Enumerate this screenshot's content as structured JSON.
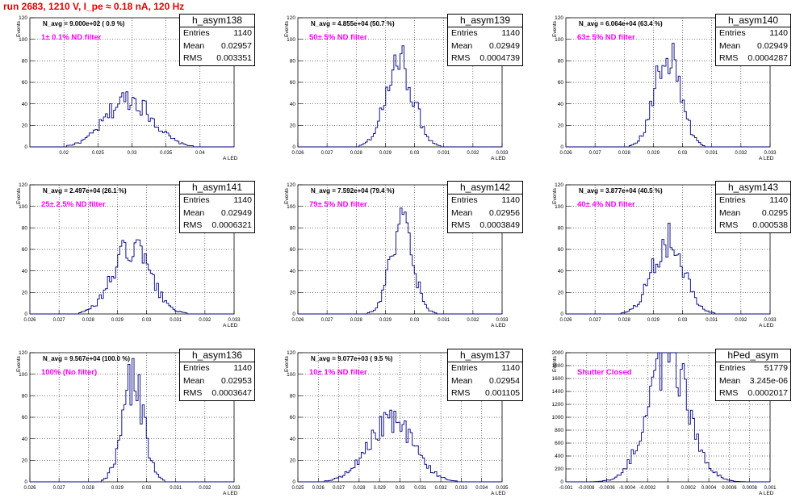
{
  "title": "run 2683,  1210 V, I_pe ≈ 0.18 nA, 120 Hz",
  "chart_data": [
    {
      "type": "histogram",
      "histname": "h_asym138",
      "stats": {
        "Entries": "1140",
        "Mean": "0.02957",
        "RMS": "0.003351"
      },
      "n_avg": "N_avg = 9.000e+02 ( 0.9 %)",
      "filter": "1± 0.1% ND filter",
      "xlim": [
        0.015,
        0.045
      ],
      "ylim": [
        0,
        120
      ],
      "xticks": [
        "0.02",
        "0.025",
        "0.03",
        "0.035",
        "0.04"
      ],
      "yticks": [
        "0",
        "20",
        "40",
        "60",
        "80",
        "100",
        "120"
      ],
      "ylabel": "Events",
      "xlabel": "A_LED",
      "mean": 0.02957,
      "rms": 0.003351,
      "peak": 45,
      "color": "#000080"
    },
    {
      "type": "histogram",
      "histname": "h_asym139",
      "stats": {
        "Entries": "1140",
        "Mean": "0.02949",
        "RMS": "0.0004739"
      },
      "n_avg": "N_avg = 4.855e+04 (50.7 %)",
      "filter": "50± 5% ND filter",
      "xlim": [
        0.026,
        0.033
      ],
      "ylim": [
        0,
        120
      ],
      "xticks": [
        "0.026",
        "0.027",
        "0.028",
        "0.029",
        "0.03",
        "0.031",
        "0.032",
        "0.033"
      ],
      "yticks": [
        "0",
        "20",
        "40",
        "60",
        "80",
        "100",
        "120"
      ],
      "ylabel": "Events",
      "xlabel": "A_LED",
      "mean": 0.02949,
      "rms": 0.0004739,
      "peak": 78,
      "color": "#000080"
    },
    {
      "type": "histogram",
      "histname": "h_asym140",
      "stats": {
        "Entries": "1140",
        "Mean": "0.02949",
        "RMS": "0.0004287"
      },
      "n_avg": "N_avg = 6.064e+04 (63.4 %)",
      "filter": "63± 5% ND filter",
      "xlim": [
        0.026,
        0.033
      ],
      "ylim": [
        0,
        120
      ],
      "xticks": [
        "0.026",
        "0.027",
        "0.028",
        "0.029",
        "0.03",
        "0.031",
        "0.032",
        "0.033"
      ],
      "yticks": [
        "0",
        "20",
        "40",
        "60",
        "80",
        "100",
        "120"
      ],
      "ylabel": "Events",
      "xlabel": "A_LED",
      "mean": 0.02949,
      "rms": 0.0004287,
      "peak": 90,
      "color": "#000080"
    },
    {
      "type": "histogram",
      "histname": "h_asym141",
      "stats": {
        "Entries": "1140",
        "Mean": "0.02949",
        "RMS": "0.0006321"
      },
      "n_avg": "N_avg = 2.497e+04 (26.1 %)",
      "filter": "25± 2.5% ND filter",
      "xlim": [
        0.026,
        0.033
      ],
      "ylim": [
        0,
        120
      ],
      "xticks": [
        "0.026",
        "0.027",
        "0.028",
        "0.029",
        "0.03",
        "0.031",
        "0.032",
        "0.033"
      ],
      "yticks": [
        "0",
        "20",
        "40",
        "60",
        "80",
        "100",
        "120"
      ],
      "ylabel": "Events",
      "xlabel": "A_LED",
      "mean": 0.02949,
      "rms": 0.0006321,
      "peak": 62,
      "color": "#000080"
    },
    {
      "type": "histogram",
      "histname": "h_asym142",
      "stats": {
        "Entries": "1140",
        "Mean": "0.02956",
        "RMS": "0.0003849"
      },
      "n_avg": "N_avg = 7.592e+04 (79.4 %)",
      "filter": "79± 5% ND filter",
      "xlim": [
        0.026,
        0.033
      ],
      "ylim": [
        0,
        120
      ],
      "xticks": [
        "0.026",
        "0.027",
        "0.028",
        "0.029",
        "0.03",
        "0.031",
        "0.032",
        "0.033"
      ],
      "yticks": [
        "0",
        "20",
        "40",
        "60",
        "80",
        "100",
        "120"
      ],
      "ylabel": "Events",
      "xlabel": "A_LED",
      "mean": 0.02956,
      "rms": 0.0003849,
      "peak": 82,
      "color": "#000080"
    },
    {
      "type": "histogram",
      "histname": "h_asym143",
      "stats": {
        "Entries": "1140",
        "Mean": "0.0295",
        "RMS": "0.000538"
      },
      "n_avg": "N_avg = 3.877e+04 (40.5 %)",
      "filter": "40± 4% ND filter",
      "xlim": [
        0.026,
        0.033
      ],
      "ylim": [
        0,
        120
      ],
      "xticks": [
        "0.026",
        "0.027",
        "0.028",
        "0.029",
        "0.03",
        "0.031",
        "0.032",
        "0.033"
      ],
      "yticks": [
        "0",
        "20",
        "40",
        "60",
        "80",
        "100",
        "120"
      ],
      "ylabel": "Events",
      "xlabel": "A_LED",
      "mean": 0.0295,
      "rms": 0.000538,
      "peak": 68,
      "color": "#000080"
    },
    {
      "type": "histogram",
      "histname": "h_asym136",
      "stats": {
        "Entries": "1140",
        "Mean": "0.02953",
        "RMS": "0.0003647"
      },
      "n_avg": "N_avg = 9.567e+04 (100.0 %)",
      "filter": "100% (No filter)",
      "xlim": [
        0.026,
        0.033
      ],
      "ylim": [
        0,
        120
      ],
      "xticks": [
        "0.026",
        "0.027",
        "0.028",
        "0.029",
        "0.03",
        "0.031",
        "0.032",
        "0.033"
      ],
      "yticks": [
        "0",
        "20",
        "40",
        "60",
        "80",
        "100",
        "120"
      ],
      "ylabel": "Events",
      "xlabel": "A_LED",
      "mean": 0.02953,
      "rms": 0.0003647,
      "peak": 95,
      "color": "#000080"
    },
    {
      "type": "histogram",
      "histname": "h_asym137",
      "stats": {
        "Entries": "1140",
        "Mean": "0.02954",
        "RMS": "0.001105"
      },
      "n_avg": "N_avg = 9.077e+03 ( 9.5 %)",
      "filter": "10± 1% ND filter",
      "xlim": [
        0.025,
        0.035
      ],
      "ylim": [
        0,
        120
      ],
      "xticks": [
        "0.025",
        "0.026",
        "0.027",
        "0.028",
        "0.029",
        "0.03",
        "0.031",
        "0.032",
        "0.033",
        "0.034",
        "0.035"
      ],
      "yticks": [
        "0",
        "20",
        "40",
        "60",
        "80",
        "100",
        "120"
      ],
      "ylabel": "Events",
      "xlabel": "A_LED",
      "mean": 0.02954,
      "rms": 0.001105,
      "peak": 56,
      "color": "#000080"
    },
    {
      "type": "histogram",
      "histname": "hPed_asym",
      "stats": {
        "Entries": "51779",
        "Mean": "3.245e-06",
        "RMS": "0.0002017"
      },
      "n_avg": "",
      "filter": "Shutter Closed",
      "xlim": [
        -0.001,
        0.001
      ],
      "ylim": [
        0,
        2000
      ],
      "xticks": [
        "-0.001",
        "-0.0008",
        "-0.0006",
        "-0.0004",
        "-0.0002",
        "0",
        "0.0002",
        "0.0004",
        "0.0006",
        "0.0008",
        "0.001"
      ],
      "yticks": [
        "0",
        "200",
        "400",
        "600",
        "800",
        "1000",
        "1200",
        "1400",
        "1600",
        "1800",
        "2000"
      ],
      "ylabel": "Events",
      "xlabel": "A_LED",
      "mean": 3.245e-06,
      "rms": 0.0002017,
      "peak": 1950,
      "color": "#000080"
    }
  ]
}
